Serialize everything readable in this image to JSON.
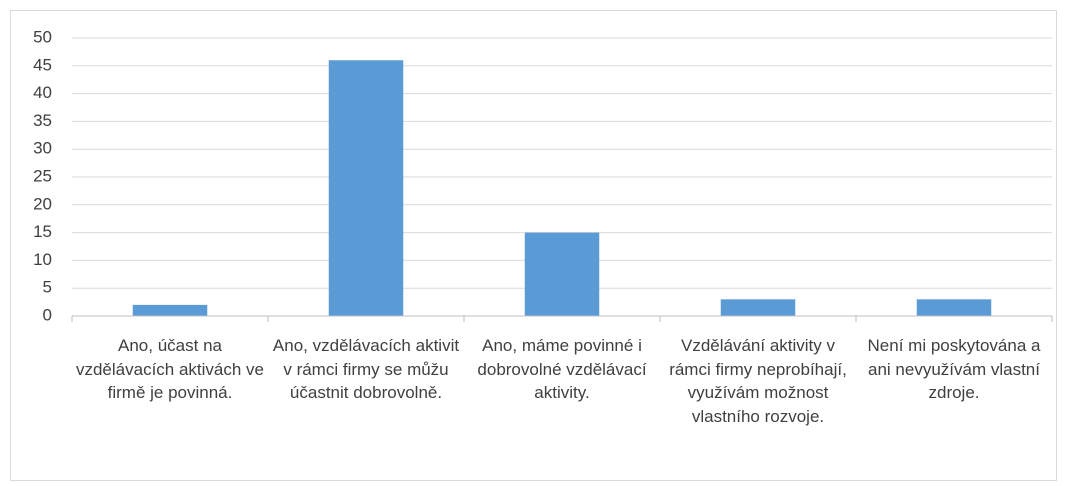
{
  "chart_data": {
    "type": "bar",
    "categories": [
      "Ano, účast na vzdělávacích aktivách ve firmě je povinná.",
      "Ano, vzdělávacích aktivit v rámci firmy se můžu účastnit dobrovolně.",
      "Ano, máme povinné i dobrovolné vzdělávací aktivity.",
      "Vzdělávání aktivity v rámci firmy neprobíhají, využívám možnost vlastního rozvoje.",
      "Není mi poskytována a ani nevyužívám vlastní zdroje."
    ],
    "values": [
      2,
      46,
      15,
      3,
      3
    ],
    "color": "#5b9bd5",
    "ylim": [
      0,
      50
    ],
    "yticks": [
      0,
      5,
      10,
      15,
      20,
      25,
      30,
      35,
      40,
      45,
      50
    ],
    "grid": true
  }
}
